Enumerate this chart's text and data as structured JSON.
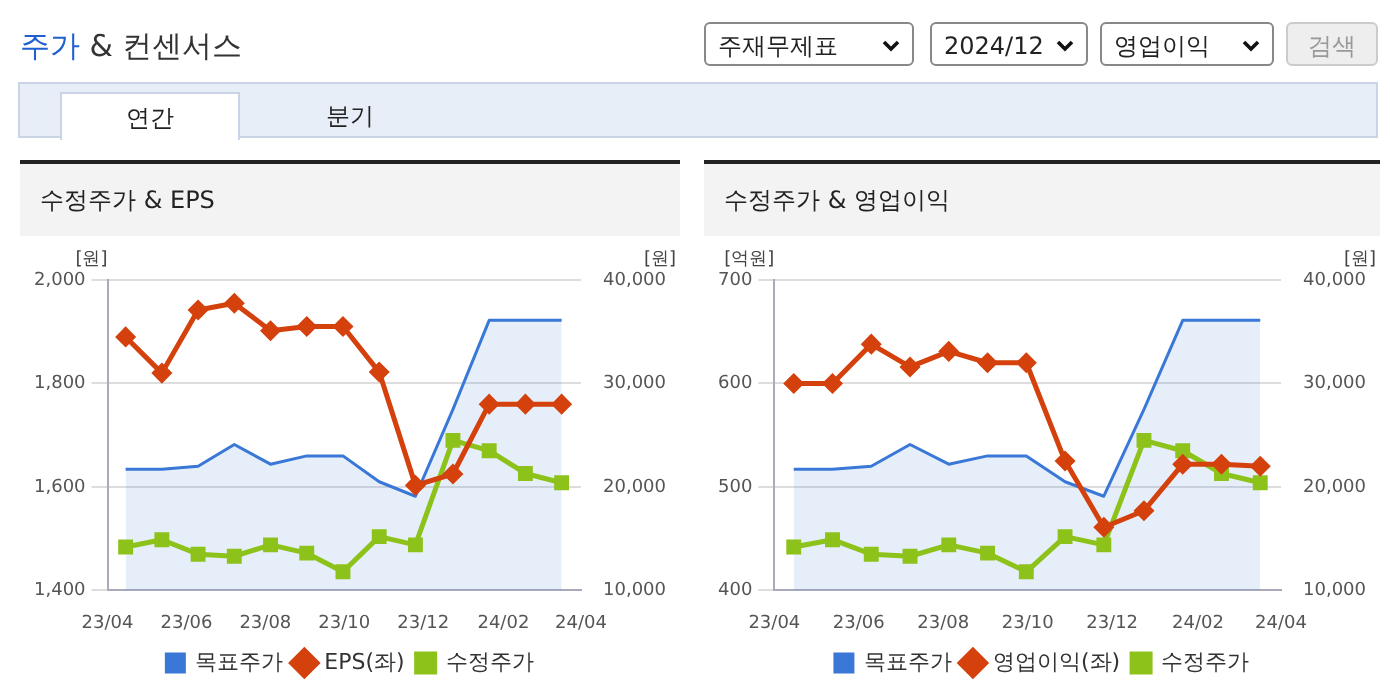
{
  "chart_data": [
    {
      "type": "other",
      "title": "주가 & 컨센서스",
      "annotations": [
        "주재무제표",
        "2024/12",
        "영업이익",
        "검색",
        "연간",
        "분기"
      ]
    },
    {
      "type": "line",
      "title": "수정주가 & EPS",
      "ylabel": "[원]",
      "y2label": "[원]",
      "x": [
        "2023-04-15",
        "2023-05-13",
        "2023-06-10",
        "2023-07-08",
        "2023-08-05",
        "2023-09-02",
        "2023-09-30",
        "2023-10-28",
        "2023-11-25",
        "2023-12-24",
        "2024-01-21",
        "2024-02-18",
        "2024-03-17"
      ],
      "xlim": [
        "2023-04-01",
        "2024-04-01"
      ],
      "xticks": [
        {
          "value": "2023-04-01",
          "label": "23/04"
        },
        {
          "value": "2023-06-01",
          "label": "23/06"
        },
        {
          "value": "2023-08-01",
          "label": "23/08"
        },
        {
          "value": "2023-10-01",
          "label": "23/10"
        },
        {
          "value": "2023-12-01",
          "label": "23/12"
        },
        {
          "value": "2024-02-01",
          "label": "24/02"
        },
        {
          "value": "2024-04-01",
          "label": "24/04"
        }
      ],
      "ylim": [
        1400,
        2000
      ],
      "yticks": [
        {
          "value": 1400,
          "label": "1,400"
        },
        {
          "value": 1600,
          "label": "1,600"
        },
        {
          "value": 1800,
          "label": "1,800"
        },
        {
          "value": 2000,
          "label": "2,000"
        }
      ],
      "y2lim": [
        10000,
        40000
      ],
      "y2ticks": [
        {
          "value": 10000,
          "label": "10,000"
        },
        {
          "value": 20000,
          "label": "20,000"
        },
        {
          "value": 30000,
          "label": "30,000"
        },
        {
          "value": 40000,
          "label": "40,000"
        }
      ],
      "grid": "y",
      "legend": "bottom",
      "series": [
        {
          "name": "목표주가",
          "type": "area",
          "axis": "y2",
          "color": "#3a78d8",
          "marker": "none",
          "values": [
            21700,
            21700,
            22000,
            24100,
            22200,
            23000,
            23000,
            20500,
            19100,
            27500,
            36100,
            36100,
            36100
          ]
        },
        {
          "name": "EPS(좌)",
          "type": "line",
          "axis": "y",
          "color": "#d4410c",
          "marker": "diamond",
          "values": [
            1890,
            1820,
            1942,
            1955,
            1902,
            1910,
            1910,
            1822,
            1603,
            1625,
            1760,
            1760,
            1760
          ]
        },
        {
          "name": "수정주가",
          "type": "line",
          "axis": "y2",
          "color": "#8cc21a",
          "marker": "square",
          "values": [
            14200,
            14900,
            13500,
            13300,
            14400,
            13600,
            11800,
            15200,
            14400,
            24500,
            23500,
            21300,
            20400
          ]
        }
      ]
    },
    {
      "type": "line",
      "title": "수정주가 & 영업이익",
      "ylabel": "[억원]",
      "y2label": "[원]",
      "x": [
        "2023-04-15",
        "2023-05-13",
        "2023-06-10",
        "2023-07-08",
        "2023-08-05",
        "2023-09-02",
        "2023-09-30",
        "2023-10-28",
        "2023-11-25",
        "2023-12-24",
        "2024-01-21",
        "2024-02-18",
        "2024-03-17"
      ],
      "xlim": [
        "2023-04-01",
        "2024-04-01"
      ],
      "xticks": [
        {
          "value": "2023-04-01",
          "label": "23/04"
        },
        {
          "value": "2023-06-01",
          "label": "23/06"
        },
        {
          "value": "2023-08-01",
          "label": "23/08"
        },
        {
          "value": "2023-10-01",
          "label": "23/10"
        },
        {
          "value": "2023-12-01",
          "label": "23/12"
        },
        {
          "value": "2024-02-01",
          "label": "24/02"
        },
        {
          "value": "2024-04-01",
          "label": "24/04"
        }
      ],
      "ylim": [
        400,
        700
      ],
      "yticks": [
        400,
        500,
        600,
        700
      ],
      "y2lim": [
        10000,
        40000
      ],
      "y2ticks": [
        {
          "value": 10000,
          "label": "10,000"
        },
        {
          "value": 20000,
          "label": "20,000"
        },
        {
          "value": 30000,
          "label": "30,000"
        },
        {
          "value": 40000,
          "label": "40,000"
        }
      ],
      "grid": "y",
      "legend": "bottom",
      "series": [
        {
          "name": "목표주가",
          "type": "area",
          "axis": "y2",
          "color": "#3a78d8",
          "marker": "none",
          "values": [
            21700,
            21700,
            22000,
            24100,
            22200,
            23000,
            23000,
            20500,
            19100,
            27500,
            36100,
            36100,
            36100
          ]
        },
        {
          "name": "영업이익(좌)",
          "type": "line",
          "axis": "y",
          "color": "#d4410c",
          "marker": "diamond",
          "values": [
            600,
            600,
            638,
            616,
            631,
            620,
            620,
            525,
            461,
            477,
            522,
            522,
            520
          ]
        },
        {
          "name": "수정주가",
          "type": "line",
          "axis": "y2",
          "color": "#8cc21a",
          "marker": "square",
          "values": [
            14200,
            14900,
            13500,
            13300,
            14400,
            13600,
            11800,
            15200,
            14400,
            24500,
            23500,
            21300,
            20400
          ]
        }
      ]
    }
  ]
}
